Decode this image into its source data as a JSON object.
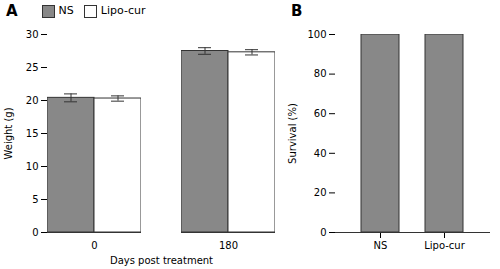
{
  "chart_data": [
    {
      "type": "bar",
      "title": "A",
      "categories": [
        "0",
        "180"
      ],
      "series": [
        {
          "name": "NS",
          "color": "#888888",
          "values": [
            20.4,
            27.5
          ],
          "errors": [
            0.6,
            0.5
          ]
        },
        {
          "name": "Lipo-cur",
          "color": "#ffffff",
          "values": [
            20.3,
            27.3
          ],
          "errors": [
            0.4,
            0.4
          ]
        }
      ],
      "xlabel": "Days post treatment",
      "ylabel": "Weight (g)",
      "ylim": [
        0,
        30
      ],
      "yticks": [
        0,
        5,
        10,
        15,
        20,
        25,
        30
      ],
      "legend": "upper left",
      "grid": false
    },
    {
      "type": "bar",
      "title": "B",
      "categories": [
        "NS",
        "Lipo-cur"
      ],
      "values": [
        100,
        100
      ],
      "color": "#888888",
      "ylabel": "Survival (%)",
      "ylim": [
        0,
        100
      ],
      "yticks": [
        0,
        20,
        40,
        60,
        80,
        100
      ],
      "grid": false
    }
  ]
}
